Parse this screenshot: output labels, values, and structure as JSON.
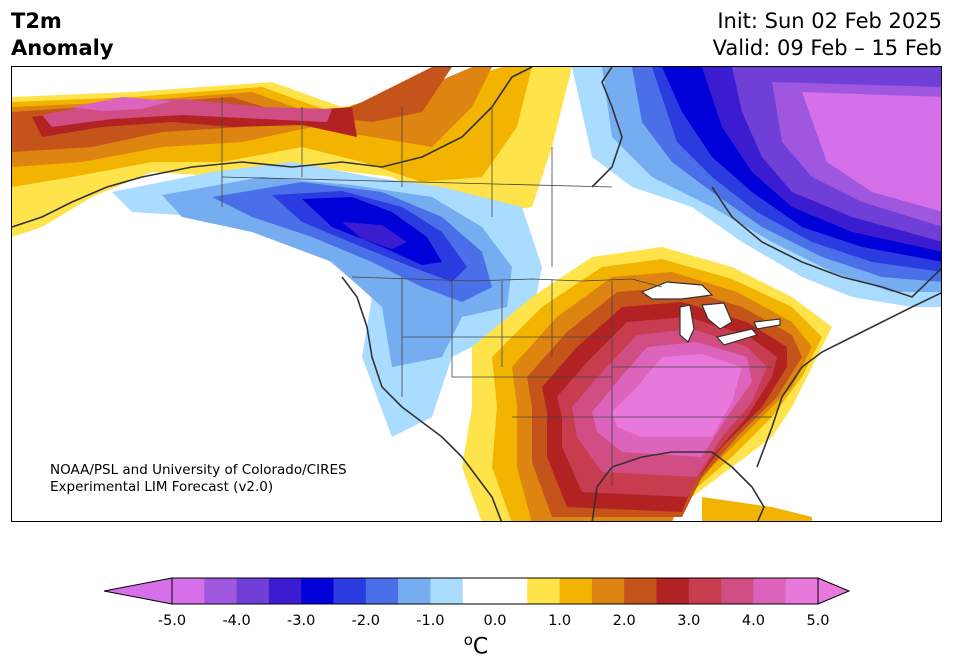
{
  "title": {
    "line1": "T2m",
    "line2": "Anomaly"
  },
  "dates": {
    "init": "Init: Sun 02 Feb 2025",
    "valid": "Valid: 09 Feb – 15 Feb"
  },
  "credit": {
    "line1": "NOAA/PSL and University of Colorado/CIRES",
    "line2": "Experimental LIM Forecast (v2.0)"
  },
  "colorbar": {
    "colors": [
      "#d670e8",
      "#a057e0",
      "#6f3fd8",
      "#3c1cd0",
      "#0000d8",
      "#2a3be0",
      "#4a6fe8",
      "#76acf0",
      "#aadcff",
      "#ffffff",
      "#ffffff",
      "#ffe34a",
      "#f2b400",
      "#de8410",
      "#c4541a",
      "#b22222",
      "#c83c50",
      "#d04e84",
      "#dc64bc",
      "#e878dc"
    ],
    "tick_labels": [
      "-5.0",
      "-4.0",
      "-3.0",
      "-2.0",
      "-1.0",
      "0.0",
      "1.0",
      "2.0",
      "3.0",
      "4.0",
      "5.0"
    ],
    "unit_base": "C",
    "unit_sup": "o"
  }
}
